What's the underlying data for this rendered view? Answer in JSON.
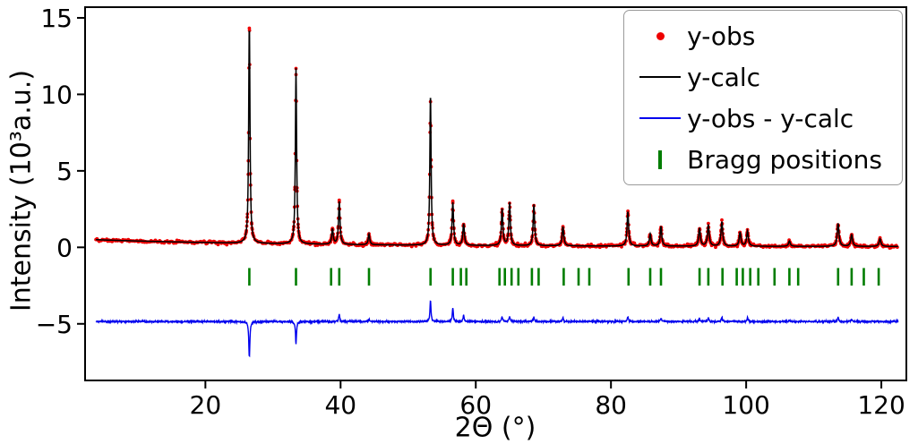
{
  "chart_data": {
    "type": "line",
    "subtype": "powder-xrd-rietveld-refinement",
    "title": "",
    "xlabel": "2Θ (°)",
    "ylabel": "Intensity (10³a.u.)",
    "xlim": [
      2.2,
      123.7
    ],
    "ylim": [
      -8.7,
      15.7
    ],
    "xticks": [
      20,
      40,
      60,
      80,
      100,
      120
    ],
    "yticks": [
      -5,
      0,
      5,
      10,
      15
    ],
    "grid": false,
    "legend": {
      "position": "upper right",
      "items": [
        {
          "label": "y-obs",
          "marker": "dot",
          "color": "#ee0000"
        },
        {
          "label": "y-calc",
          "marker": "line",
          "color": "#000000"
        },
        {
          "label": "y-obs - y-calc",
          "marker": "line",
          "color": "#0000ee"
        },
        {
          "label": "Bragg positions",
          "marker": "vtick",
          "color": "#007d00"
        }
      ]
    },
    "colors": {
      "obs": "#ee0000",
      "calc": "#000000",
      "resid": "#0000ee",
      "bragg": "#007d00",
      "axes": "#000000"
    },
    "background_curve": {
      "start_y": 0.5,
      "end_y": 0.05,
      "decay": 30,
      "x_start": 3.8,
      "x_end": 122.5
    },
    "peaks": [
      {
        "x": 26.5,
        "h": 14.3,
        "w": 0.11
      },
      {
        "x": 33.4,
        "h": 11.5,
        "w": 0.11
      },
      {
        "x": 38.8,
        "h": 1.0,
        "w": 0.13
      },
      {
        "x": 39.8,
        "h": 2.8,
        "w": 0.13
      },
      {
        "x": 44.2,
        "h": 0.7,
        "w": 0.13
      },
      {
        "x": 53.3,
        "h": 9.9,
        "w": 0.11
      },
      {
        "x": 56.6,
        "h": 2.8,
        "w": 0.13
      },
      {
        "x": 58.2,
        "h": 1.4,
        "w": 0.13
      },
      {
        "x": 63.9,
        "h": 2.4,
        "w": 0.13
      },
      {
        "x": 65.0,
        "h": 2.8,
        "w": 0.13
      },
      {
        "x": 68.6,
        "h": 2.7,
        "w": 0.13
      },
      {
        "x": 72.9,
        "h": 1.25,
        "w": 0.14
      },
      {
        "x": 82.5,
        "h": 2.25,
        "w": 0.14
      },
      {
        "x": 85.8,
        "h": 0.8,
        "w": 0.14
      },
      {
        "x": 87.4,
        "h": 1.3,
        "w": 0.14
      },
      {
        "x": 93.1,
        "h": 1.15,
        "w": 0.15
      },
      {
        "x": 94.4,
        "h": 1.4,
        "w": 0.15
      },
      {
        "x": 96.4,
        "h": 1.6,
        "w": 0.15
      },
      {
        "x": 99.1,
        "h": 0.9,
        "w": 0.15
      },
      {
        "x": 100.2,
        "h": 1.0,
        "w": 0.15
      },
      {
        "x": 106.4,
        "h": 0.35,
        "w": 0.15
      },
      {
        "x": 113.6,
        "h": 1.5,
        "w": 0.16
      },
      {
        "x": 115.6,
        "h": 0.75,
        "w": 0.16
      },
      {
        "x": 119.8,
        "h": 0.5,
        "w": 0.16
      }
    ],
    "bragg_positions": [
      26.5,
      33.4,
      38.6,
      39.8,
      44.2,
      53.3,
      56.6,
      57.8,
      58.6,
      63.5,
      64.3,
      65.3,
      66.3,
      68.3,
      69.3,
      73.0,
      75.2,
      76.8,
      82.6,
      85.8,
      87.4,
      93.1,
      94.4,
      96.5,
      98.6,
      99.5,
      100.6,
      101.8,
      104.2,
      106.4,
      107.7,
      113.6,
      115.6,
      117.4,
      119.6
    ],
    "bragg_tick_y": [
      -1.35,
      -2.5
    ],
    "residual": {
      "baseline": -4.85,
      "noise": 0.03,
      "spike_width": 0.09,
      "spikes": [
        {
          "x": 26.5,
          "a": -2.35
        },
        {
          "x": 33.4,
          "a": -1.45
        },
        {
          "x": 39.8,
          "a": 0.5
        },
        {
          "x": 44.2,
          "a": 0.15
        },
        {
          "x": 53.3,
          "a": 1.4
        },
        {
          "x": 56.6,
          "a": 0.9
        },
        {
          "x": 58.2,
          "a": 0.4
        },
        {
          "x": 63.9,
          "a": 0.3
        },
        {
          "x": 65.0,
          "a": 0.35
        },
        {
          "x": 68.6,
          "a": 0.3
        },
        {
          "x": 72.9,
          "a": 0.25
        },
        {
          "x": 82.5,
          "a": 0.3
        },
        {
          "x": 87.4,
          "a": 0.25
        },
        {
          "x": 93.1,
          "a": 0.2
        },
        {
          "x": 94.4,
          "a": 0.25
        },
        {
          "x": 96.4,
          "a": 0.3
        },
        {
          "x": 100.2,
          "a": 0.25
        },
        {
          "x": 106.4,
          "a": 0.1
        },
        {
          "x": 113.6,
          "a": 0.3
        },
        {
          "x": 115.6,
          "a": 0.15
        }
      ]
    }
  }
}
